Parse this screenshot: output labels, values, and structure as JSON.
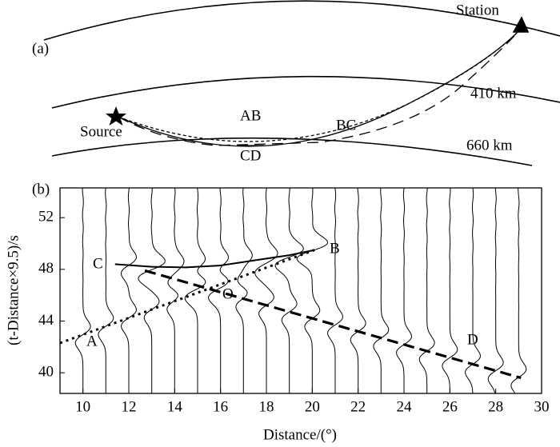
{
  "panel_a": {
    "label": "(a)",
    "station": "Station",
    "source": "Source",
    "d410": "410 km",
    "d660": "660 km"
  },
  "chart_data": {
    "type": "record-section",
    "label": "(b)",
    "xlabel": "Distance/(°)",
    "ylabel": "(t-Distance×9.5)/s",
    "xlim": [
      9,
      30
    ],
    "xticks": [
      10,
      12,
      14,
      16,
      18,
      20,
      22,
      24,
      26,
      28,
      30
    ],
    "ylim": [
      38.4,
      54.3
    ],
    "yticks": [
      40,
      44,
      48,
      52
    ],
    "traces": [
      10,
      11,
      12,
      13,
      14,
      15,
      16,
      17,
      18,
      19,
      20,
      21,
      22,
      23,
      24,
      25,
      26,
      27,
      28,
      29
    ],
    "series": [
      {
        "name": "AB",
        "style": "dotted",
        "color": "#000",
        "x": [
          9,
          20.1
        ],
        "values": [
          42.3,
          49.5
        ]
      },
      {
        "name": "BC",
        "style": "solid",
        "color": "#000",
        "x": [
          11.4,
          13,
          14.5,
          16,
          17.5,
          19,
          20.1
        ],
        "values": [
          48.4,
          48.2,
          48.15,
          48.3,
          48.7,
          49.1,
          49.5
        ]
      },
      {
        "name": "CD",
        "style": "dashed",
        "color": "#000",
        "x": [
          12.7,
          29.1
        ],
        "values": [
          47.9,
          39.6
        ]
      }
    ],
    "annotations": [
      "A",
      "B",
      "C",
      "D",
      "O"
    ]
  }
}
